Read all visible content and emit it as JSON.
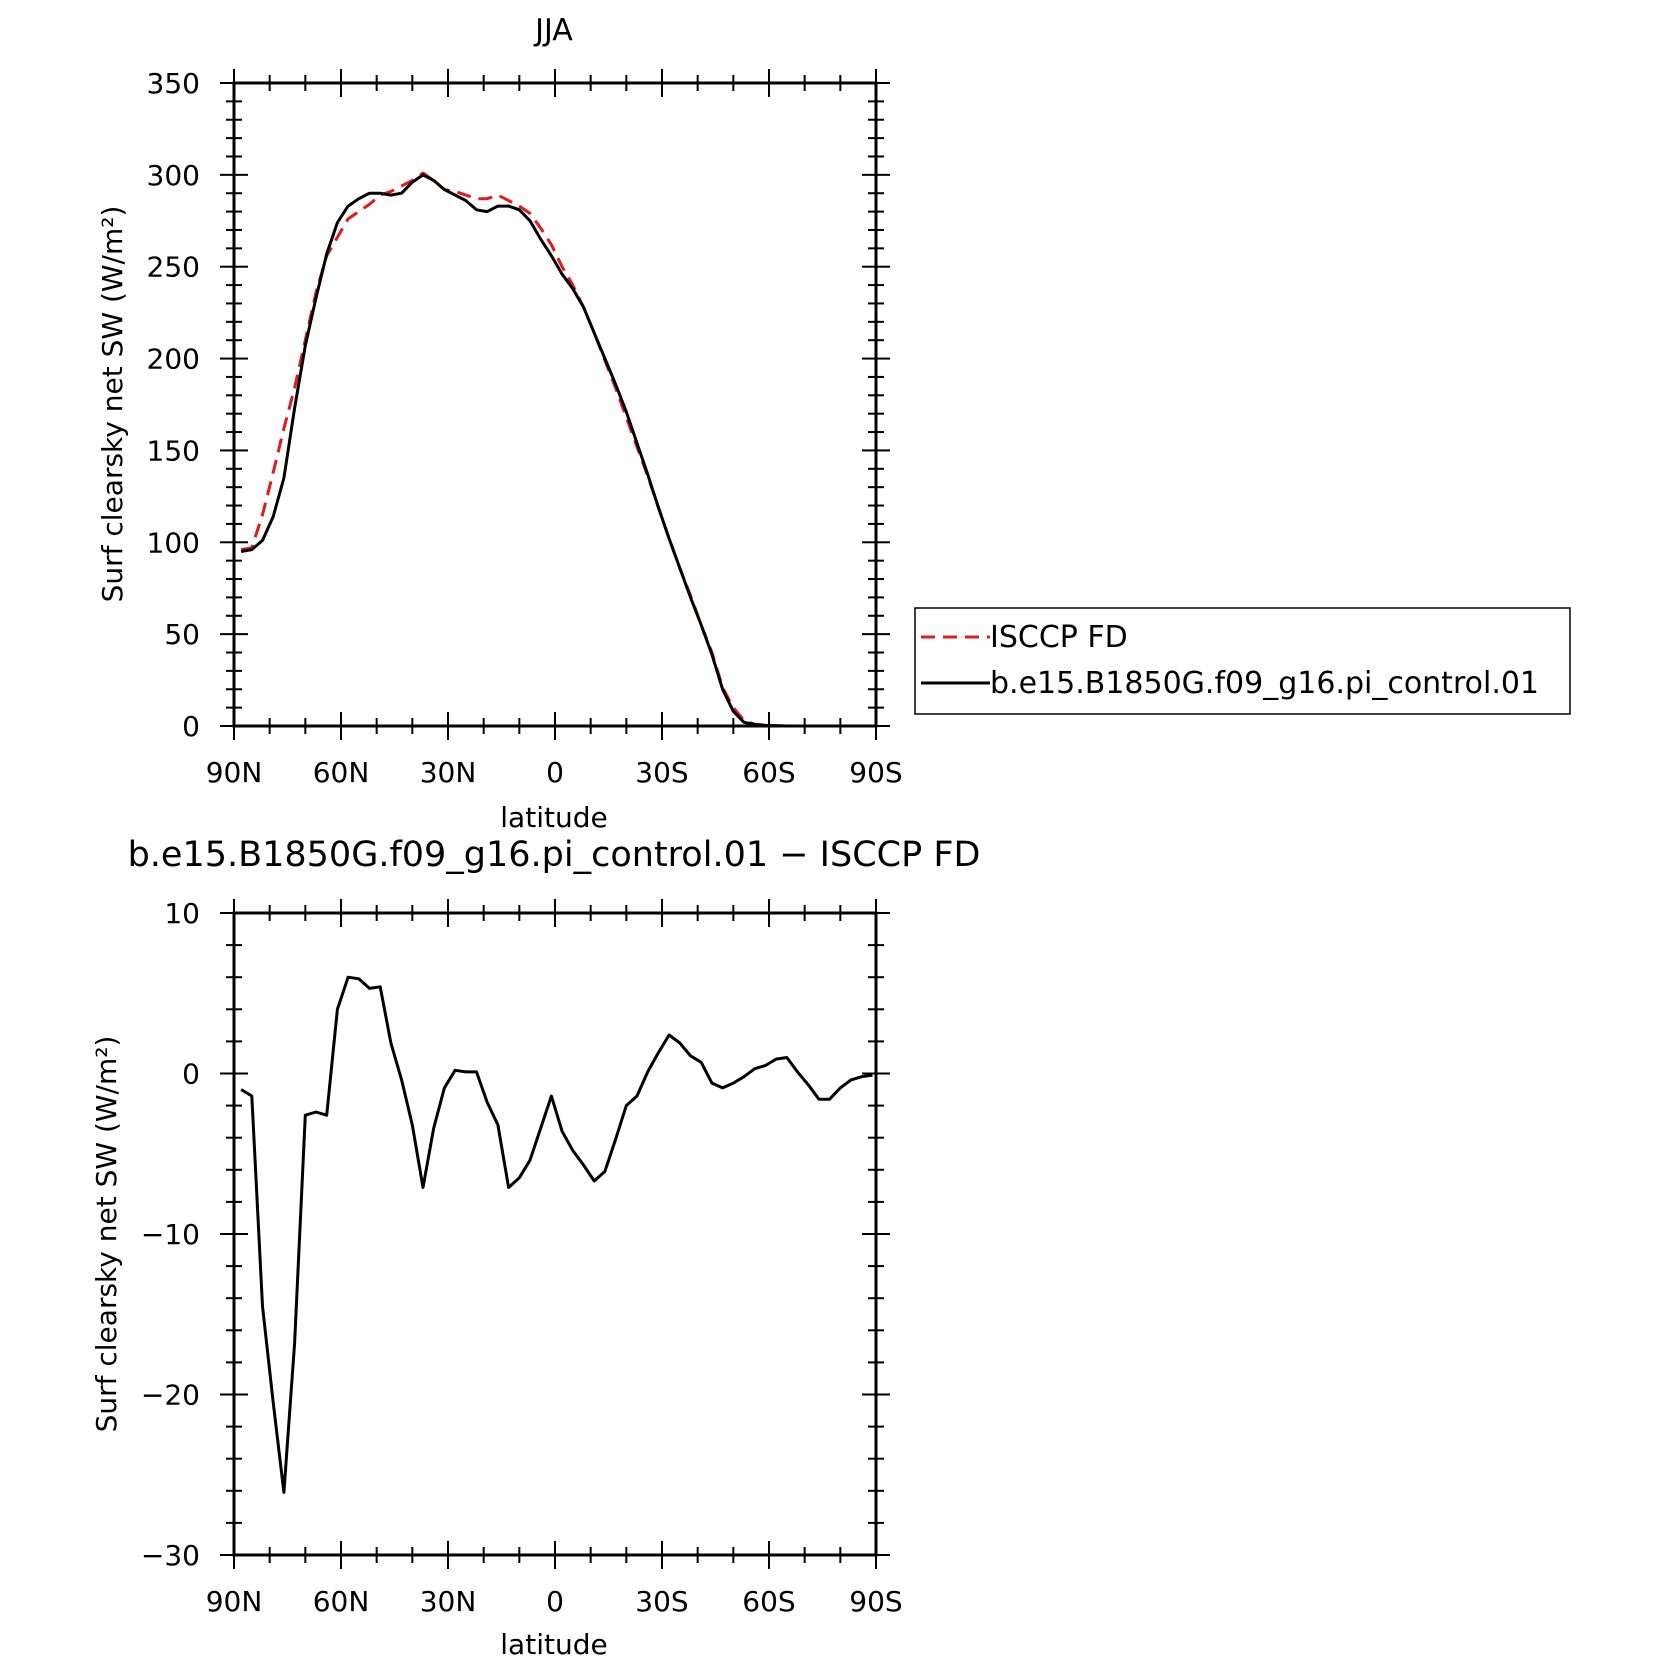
{
  "chart_data": [
    {
      "type": "line",
      "title": "JJA",
      "xlabel": "latitude",
      "ylabel": "Surf clearsky net SW (W/m²)",
      "xlim": [
        90,
        -90
      ],
      "ylim": [
        0,
        350
      ],
      "x_ticks": [
        90,
        60,
        30,
        0,
        -30,
        -60,
        -90
      ],
      "x_tick_labels": [
        "90N",
        "60N",
        "30N",
        "0",
        "30S",
        "60S",
        "90S"
      ],
      "y_ticks": [
        0,
        50,
        100,
        150,
        200,
        250,
        300,
        350
      ],
      "y_tick_labels": [
        "0",
        "50",
        "100",
        "150",
        "200",
        "250",
        "300",
        "350"
      ],
      "legend": "right",
      "series": [
        {
          "name": "ISCCP FD",
          "color": "#e31a1c",
          "dash": "dashed",
          "x": [
            88,
            85,
            82,
            79,
            76,
            73,
            70,
            67,
            64,
            61,
            58,
            55,
            52,
            49,
            46,
            43,
            40,
            37,
            34,
            31,
            28,
            25,
            22,
            19,
            16,
            13,
            10,
            7,
            4,
            1,
            -2,
            -5,
            -8,
            -11,
            -14,
            -17,
            -20,
            -23,
            -26,
            -29,
            -32,
            -35,
            -38,
            -41,
            -44,
            -47,
            -50,
            -53,
            -56,
            -59,
            -62,
            -65,
            -68,
            -71,
            -74,
            -77,
            -80,
            -83,
            -86,
            -89
          ],
          "y": [
            96,
            97,
            115,
            138,
            162,
            184,
            210,
            236,
            256,
            266,
            276,
            280,
            284,
            289,
            291,
            294,
            297,
            301,
            297,
            292,
            291,
            289,
            287,
            287,
            289,
            286,
            283,
            279,
            271,
            262,
            250,
            240,
            228,
            214,
            199,
            184,
            168,
            152,
            136,
            119,
            102,
            86,
            71,
            55,
            40,
            21,
            10,
            3,
            1,
            0.5,
            0.2,
            0,
            0,
            0,
            0,
            0,
            0,
            0,
            0,
            0
          ]
        },
        {
          "name": "b.e15.B1850G.f09_g16.pi_control.01",
          "color": "#000000",
          "dash": "solid",
          "x": [
            88,
            85,
            82,
            79,
            76,
            73,
            70,
            67,
            64,
            61,
            58,
            55,
            52,
            49,
            46,
            43,
            40,
            37,
            34,
            31,
            28,
            25,
            22,
            19,
            16,
            13,
            10,
            7,
            4,
            1,
            -2,
            -5,
            -8,
            -11,
            -14,
            -17,
            -20,
            -23,
            -26,
            -29,
            -32,
            -35,
            -38,
            -41,
            -44,
            -47,
            -50,
            -53,
            -56,
            -59,
            -62,
            -65,
            -68,
            -71,
            -74,
            -77,
            -80,
            -83,
            -86,
            -89
          ],
          "y": [
            95,
            96,
            101,
            114,
            135,
            173,
            207,
            233,
            257,
            274,
            283,
            287,
            290,
            290,
            289,
            290,
            296,
            300,
            297,
            292,
            289,
            286,
            281,
            280,
            283,
            283,
            281,
            275,
            265,
            256,
            246,
            238,
            228,
            214,
            200,
            186,
            171,
            154,
            137,
            119,
            102,
            86,
            70,
            55,
            39,
            20,
            8,
            2,
            0.8,
            0.3,
            0.1,
            0,
            0,
            0,
            0,
            0,
            0,
            0,
            0,
            0
          ]
        }
      ]
    },
    {
      "type": "line",
      "title": "b.e15.B1850G.f09_g16.pi_control.01 − ISCCP FD",
      "xlabel": "latitude",
      "ylabel": "Surf clearsky net SW (W/m²)",
      "xlim": [
        90,
        -90
      ],
      "ylim": [
        -30,
        10
      ],
      "x_ticks": [
        90,
        60,
        30,
        0,
        -30,
        -60,
        -90
      ],
      "x_tick_labels": [
        "90N",
        "60N",
        "30N",
        "0",
        "30S",
        "60S",
        "90S"
      ],
      "y_ticks": [
        10,
        0,
        -10,
        -20,
        -30
      ],
      "y_tick_labels": [
        "10",
        "0",
        "−10",
        "−20",
        "−30"
      ],
      "series": [
        {
          "color": "#000000",
          "dash": "solid",
          "x": [
            88,
            85,
            82,
            79,
            76,
            73,
            70,
            67,
            64,
            61,
            58,
            55,
            52,
            49,
            46,
            43,
            40,
            37,
            34,
            31,
            28,
            25,
            22,
            19,
            16,
            13,
            10,
            7,
            4,
            1,
            -2,
            -5,
            -8,
            -11,
            -14,
            -17,
            -20,
            -23,
            -26,
            -29,
            -32,
            -35,
            -38,
            -41,
            -44,
            -47,
            -50,
            -53,
            -56,
            -59,
            -62,
            -65,
            -68,
            -71,
            -74,
            -77,
            -80,
            -83,
            -86,
            -89
          ],
          "y": [
            -1,
            -1.4,
            -14.5,
            -20.5,
            -26.1,
            -16.8,
            -2.6,
            -2.4,
            -2.6,
            4,
            6,
            5.9,
            5.3,
            5.4,
            1.9,
            -0.4,
            -3.2,
            -7.1,
            -3.4,
            -0.9,
            0.2,
            0.1,
            0.1,
            -1.8,
            -3.2,
            -7.1,
            -6.5,
            -5.4,
            -3.4,
            -1.4,
            -3.6,
            -4.8,
            -5.7,
            -6.7,
            -6.1,
            -4.1,
            -2,
            -1.4,
            0.1,
            1.3,
            2.4,
            1.9,
            1.1,
            0.7,
            -0.6,
            -0.9,
            -0.6,
            -0.2,
            0.3,
            0.5,
            0.9,
            1,
            0.1,
            -0.7,
            -1.6,
            -1.6,
            -0.9,
            -0.4,
            -0.2,
            -0.1
          ]
        }
      ]
    }
  ]
}
